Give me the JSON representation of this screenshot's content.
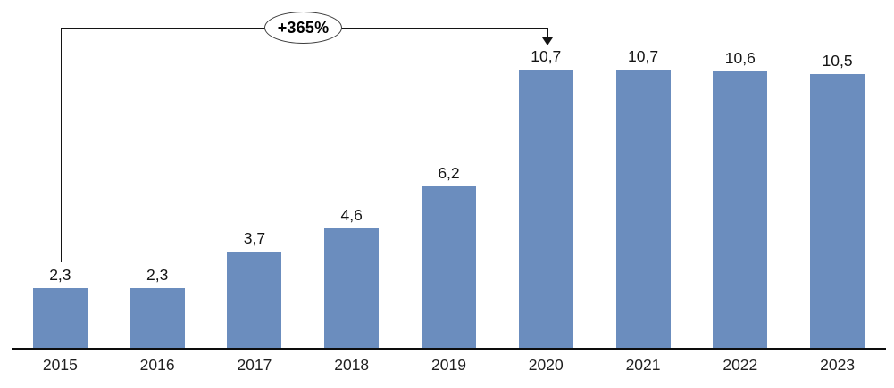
{
  "chart_data": {
    "type": "bar",
    "title": "",
    "xlabel": "",
    "ylabel": "",
    "categories": [
      "2015",
      "2016",
      "2017",
      "2018",
      "2019",
      "2020",
      "2021",
      "2022",
      "2023"
    ],
    "values": [
      2.3,
      2.3,
      3.7,
      4.6,
      6.2,
      10.7,
      10.7,
      10.6,
      10.5
    ],
    "value_labels": [
      "2,3",
      "2,3",
      "3,7",
      "4,6",
      "6,2",
      "10,7",
      "10,7",
      "10,6",
      "10,5"
    ],
    "ylim": [
      0,
      12
    ],
    "grid": false,
    "legend": "none",
    "y_axis_visible": false,
    "bar_color": "#6B8DBE",
    "axis_line_color": "#0D0D0D",
    "label_color": "#141414",
    "category_label_color": "#1F1F1F",
    "annotation": {
      "label": "+365%",
      "from_category": "2015",
      "to_category": "2020",
      "line_color": "#141414",
      "ellipse_fill": "#FFFFFF",
      "ellipse_border": "#3D3D3D"
    }
  }
}
